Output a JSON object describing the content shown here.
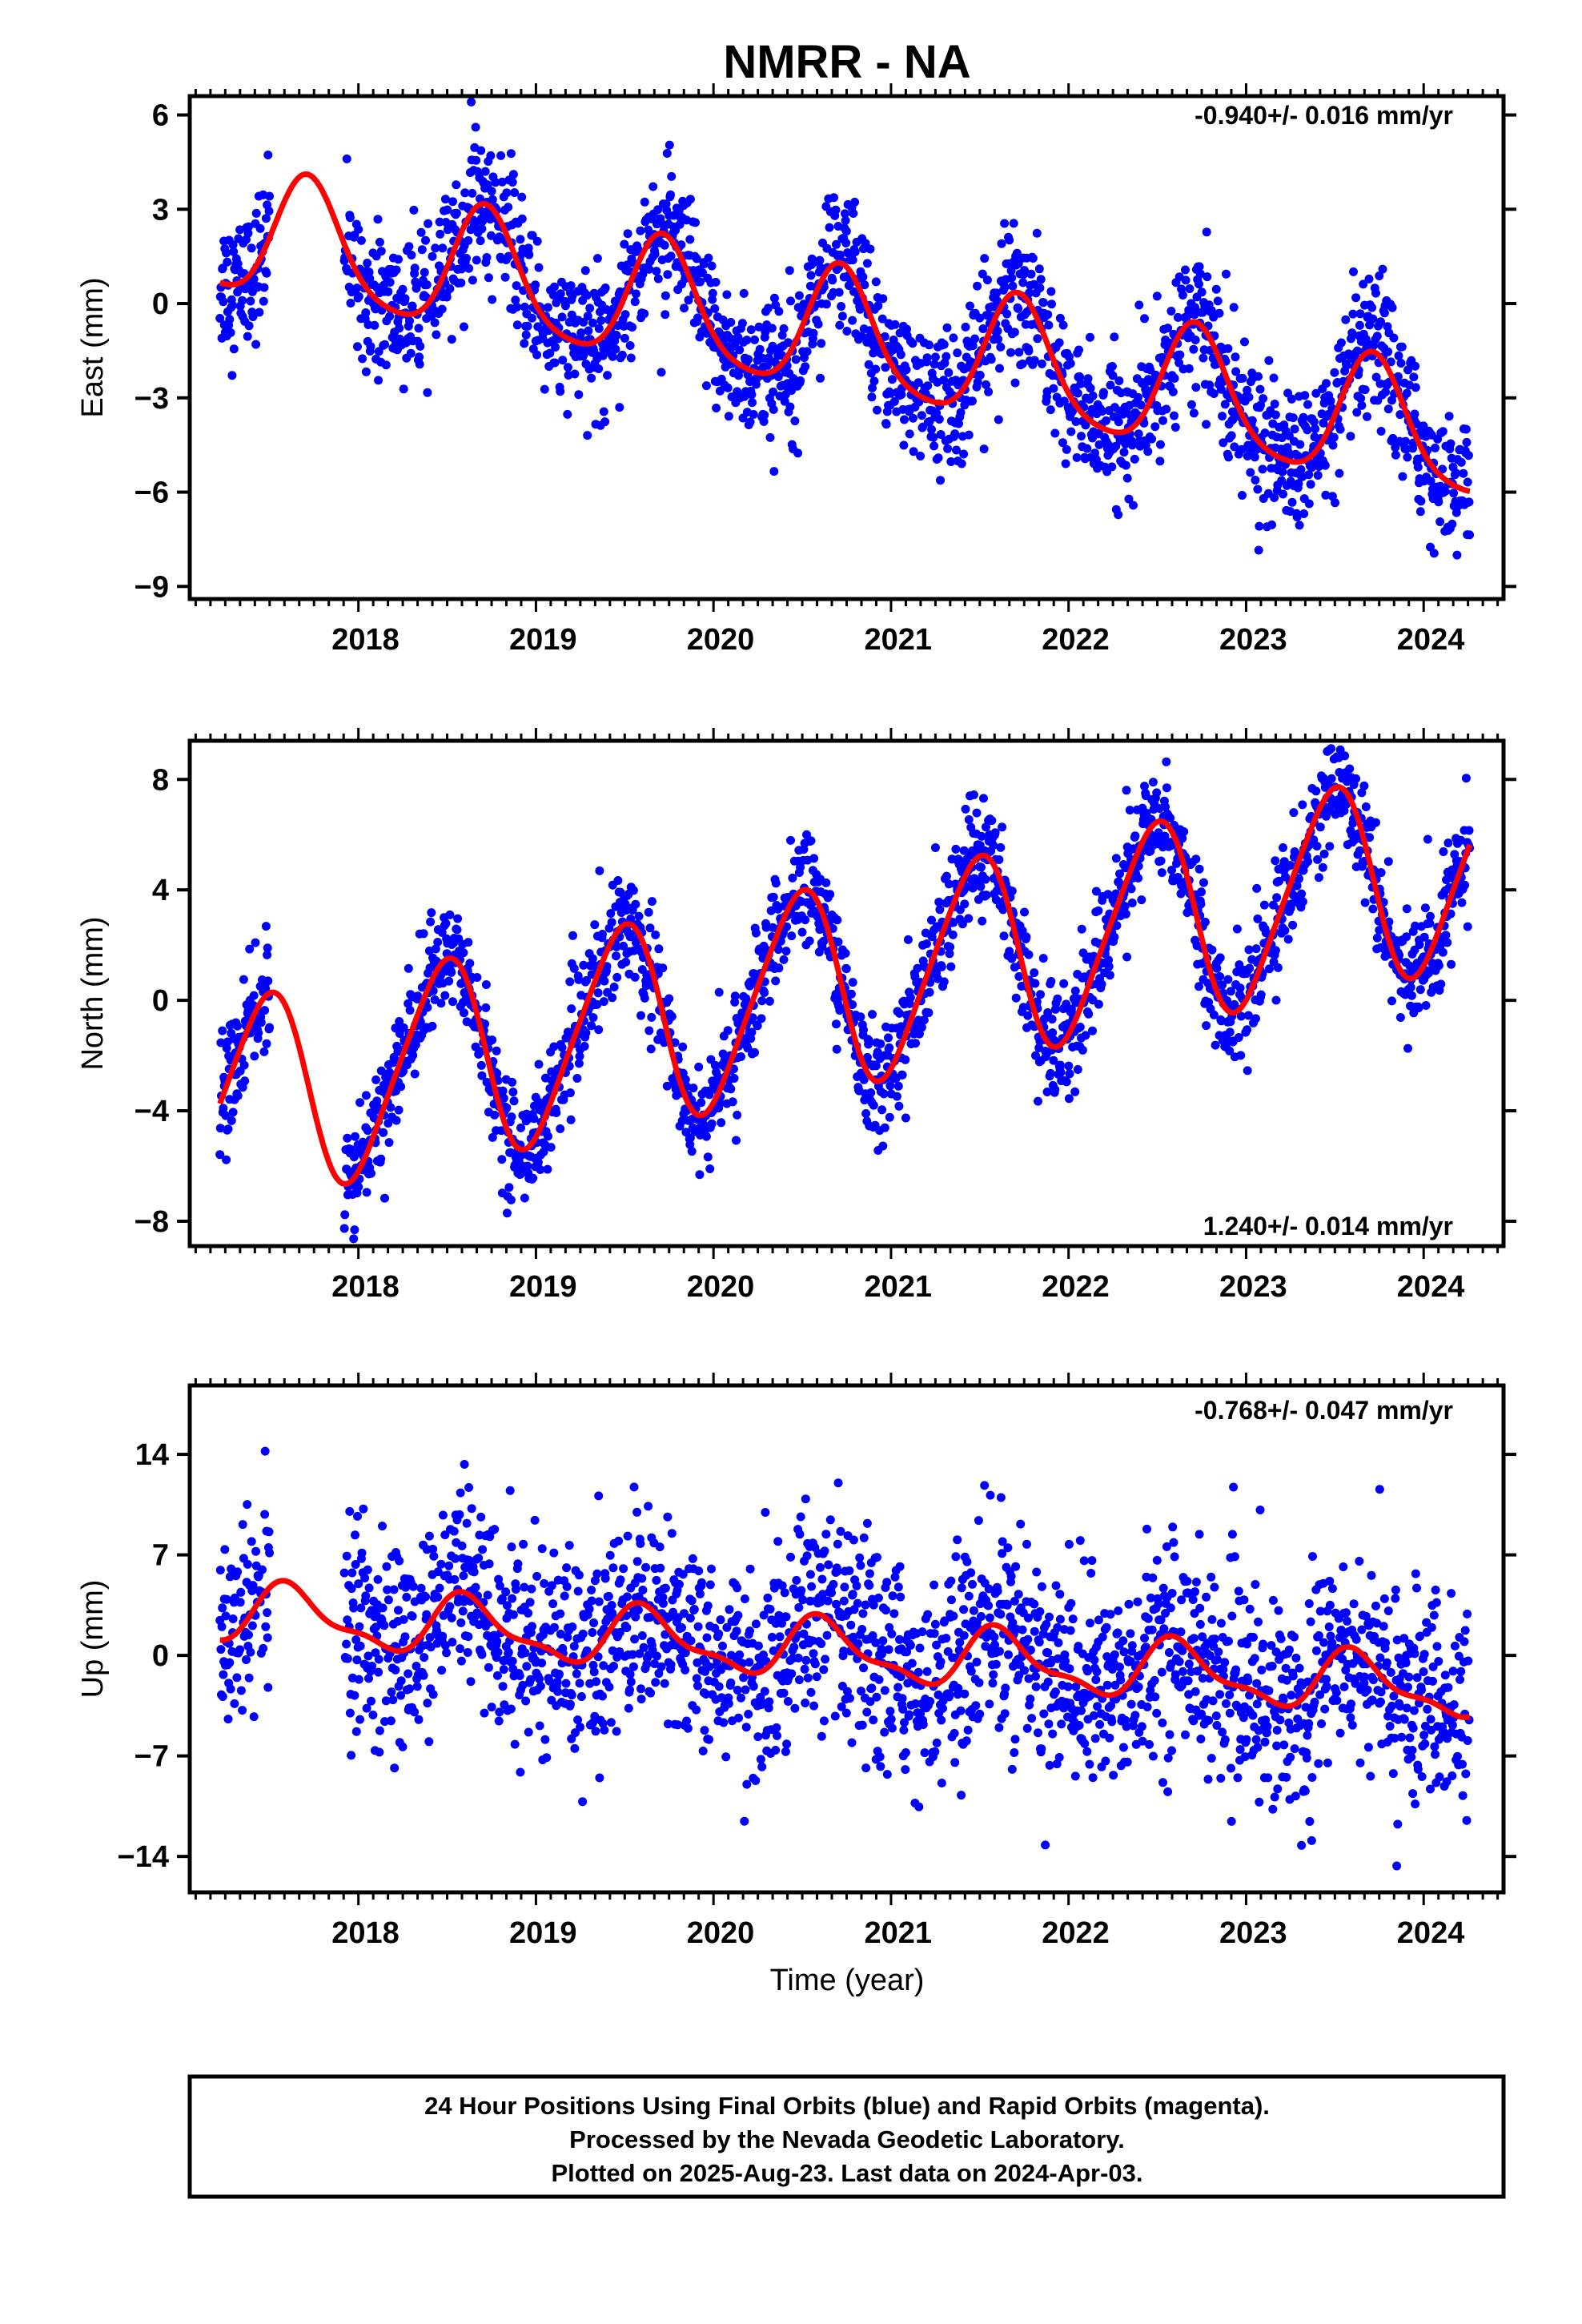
{
  "title": "NMRR - NA",
  "xlabel": "Time (year)",
  "colors": {
    "final_orbit_points": "#0000ff",
    "model_curve": "#ff0000",
    "frame": "#000000"
  },
  "footer": {
    "line1": "24 Hour Positions Using Final Orbits (blue) and Rapid Orbits (magenta).",
    "line2": "Processed by the Nevada Geodetic Laboratory.",
    "line3": "Plotted on 2025-Aug-23. Last data on 2024-Apr-03."
  },
  "chart_data": [
    {
      "type": "scatter",
      "component": "east",
      "ylabel": "East (mm)",
      "rate_label": "-0.940+/- 0.016 mm/yr",
      "rate_mm_per_yr": -0.94,
      "rate_sigma": 0.016,
      "xlim": [
        2017.05,
        2024.45
      ],
      "ylim": [
        -9.4,
        6.6
      ],
      "yticks": [
        6,
        3,
        0,
        -3,
        -6,
        -9
      ],
      "ytick_labels": [
        "6",
        "3",
        "0",
        "−3",
        "−6",
        "−9"
      ],
      "xticks": [
        2018,
        2019,
        2020,
        2021,
        2022,
        2023,
        2024
      ],
      "xtick_labels": [
        "2018",
        "2019",
        "2020",
        "2021",
        "2022",
        "2023",
        "2024"
      ],
      "data_gap": [
        2017.5,
        2017.92
      ],
      "data_span": [
        2017.22,
        2024.26
      ],
      "model": {
        "intercept_at_2017_2": 2.3,
        "rate": -0.94,
        "annual_amp": 1.95,
        "annual_peak_frac": 0.72,
        "semiannual_amp": 0.35,
        "semiannual_peak_frac": 0.2
      },
      "scatter_sigma_mm": 1.1,
      "series": [
        {
          "name": "Final orbits",
          "color": "#0000ff",
          "kind": "points"
        },
        {
          "name": "Model fit",
          "color": "#ff0000",
          "kind": "line"
        }
      ]
    },
    {
      "type": "scatter",
      "component": "north",
      "ylabel": "North (mm)",
      "rate_label": "1.240+/- 0.014 mm/yr",
      "rate_mm_per_yr": 1.24,
      "rate_sigma": 0.014,
      "xlim": [
        2017.05,
        2024.45
      ],
      "ylim": [
        -8.9,
        9.4
      ],
      "yticks": [
        8,
        4,
        0,
        -4,
        -8
      ],
      "ytick_labels": [
        "8",
        "4",
        "0",
        "−4",
        "−8"
      ],
      "xticks": [
        2018,
        2019,
        2020,
        2021,
        2022,
        2023,
        2024
      ],
      "xtick_labels": [
        "2018",
        "2019",
        "2020",
        "2021",
        "2022",
        "2023",
        "2024"
      ],
      "data_gap": [
        2017.5,
        2017.92
      ],
      "data_span": [
        2017.22,
        2024.26
      ],
      "model": {
        "intercept_at_2017_2": -3.8,
        "rate": 1.24,
        "annual_amp": 3.6,
        "annual_peak_frac": 0.47,
        "semiannual_amp": 0.5,
        "semiannual_peak_frac": 0.1
      },
      "scatter_sigma_mm": 1.0,
      "series": [
        {
          "name": "Final orbits",
          "color": "#0000ff",
          "kind": "points"
        },
        {
          "name": "Model fit",
          "color": "#ff0000",
          "kind": "line"
        }
      ]
    },
    {
      "type": "scatter",
      "component": "up",
      "ylabel": "Up (mm)",
      "rate_label": "-0.768+/- 0.047 mm/yr",
      "rate_mm_per_yr": -0.768,
      "rate_sigma": 0.047,
      "xlim": [
        2017.05,
        2024.45
      ],
      "ylim": [
        -16.5,
        18.8
      ],
      "yticks": [
        14,
        7,
        0,
        -7,
        -14
      ],
      "ytick_labels": [
        "14",
        "7",
        "0",
        "−7",
        "−14"
      ],
      "xticks": [
        2018,
        2019,
        2020,
        2021,
        2022,
        2023,
        2024
      ],
      "xtick_labels": [
        "2018",
        "2019",
        "2020",
        "2021",
        "2022",
        "2023",
        "2024"
      ],
      "data_gap": [
        2017.5,
        2017.92
      ],
      "data_span": [
        2017.22,
        2024.26
      ],
      "model": {
        "intercept_at_2017_2": 3.0,
        "rate": -0.768,
        "annual_amp": 1.9,
        "annual_peak_frac": 0.62,
        "semiannual_amp": 0.7,
        "semiannual_peak_frac": 0.05
      },
      "scatter_sigma_mm": 3.6,
      "series": [
        {
          "name": "Final orbits",
          "color": "#0000ff",
          "kind": "points"
        },
        {
          "name": "Model fit",
          "color": "#ff0000",
          "kind": "line"
        }
      ]
    }
  ]
}
